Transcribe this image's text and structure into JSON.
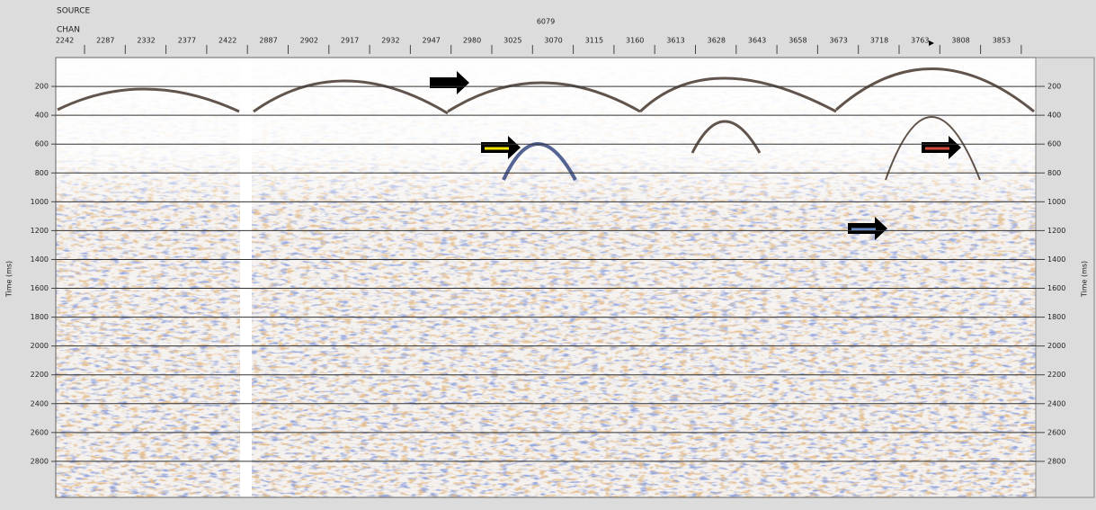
{
  "chart_data": {
    "type": "seismic",
    "source_label": "SOURCE",
    "chan_label": "CHAN",
    "source_value": "6079",
    "categories": [
      "2242",
      "2287",
      "2332",
      "2377",
      "2422",
      "2887",
      "2902",
      "2917",
      "2932",
      "2947",
      "2980",
      "3025",
      "3070",
      "3115",
      "3160",
      "3613",
      "3628",
      "3643",
      "3658",
      "3673",
      "3718",
      "3763",
      "3808",
      "3853"
    ],
    "ylabel": "Time (ms)",
    "ylim": [
      0,
      3050
    ],
    "yticks": [
      200,
      400,
      600,
      800,
      1000,
      1200,
      1400,
      1600,
      1800,
      2000,
      2200,
      2400,
      2600,
      2800
    ],
    "grid": true
  }
}
